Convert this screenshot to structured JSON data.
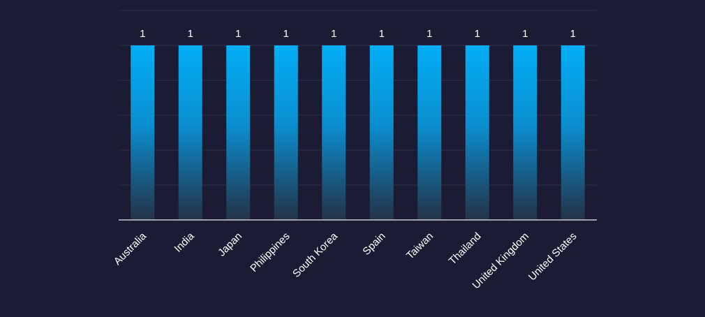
{
  "chart_data": {
    "type": "bar",
    "title": "",
    "xlabel": "",
    "ylabel": "",
    "categories": [
      "Australia",
      "India",
      "Japan",
      "Philippines",
      "South Korea",
      "Spain",
      "Taiwan",
      "Thailand",
      "United Kingdom",
      "United States"
    ],
    "values": [
      1,
      1,
      1,
      1,
      1,
      1,
      1,
      1,
      1,
      1
    ],
    "data_labels": [
      "1",
      "1",
      "1",
      "1",
      "1",
      "1",
      "1",
      "1",
      "1",
      "1"
    ],
    "ylim": [
      0,
      1.2
    ],
    "y_grid_step": 0.2,
    "grid": true,
    "y_axis_labels_visible": false,
    "legend": "none",
    "colors": {
      "background": "#1b1c33",
      "bar_top": "#03aef6",
      "bar_bottom": "#243247",
      "grid": "#2c2f47",
      "axis": "#c9cbd6",
      "text": "#ffffff"
    }
  }
}
